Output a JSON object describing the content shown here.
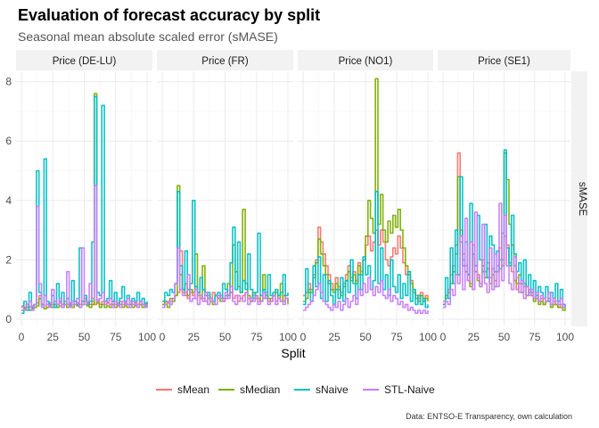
{
  "title": "Evaluation of forecast accuracy by split",
  "subtitle": "Seasonal mean absolute scaled error (sMASE)",
  "caption": "Data: ENTSO-E Transparency, own calculation",
  "colors": {
    "sMean": "#F8766D",
    "sMedian": "#7CAE00",
    "sNaive": "#00BFC4",
    "STL-Naive": "#C77CFF",
    "strip_bg": "#f2f2f2",
    "grid_major": "#ebebeb",
    "grid_minor": "#f5f5f5"
  },
  "chart_data": {
    "type": "line",
    "facets": [
      "Price (DE-LU)",
      "Price (FR)",
      "Price (NO1)",
      "Price (SE1)"
    ],
    "facet_strip_right": "sMASE",
    "xlabel": "Split",
    "ylabel": "",
    "xlim": [
      0,
      100
    ],
    "ylim": [
      0,
      8.2
    ],
    "xticks": [
      0,
      25,
      50,
      75,
      100
    ],
    "yticks": [
      0,
      2,
      4,
      6,
      8
    ],
    "legend": {
      "position": "bottom",
      "entries": [
        "sMean",
        "sMedian",
        "sNaive",
        "STL-Naive"
      ]
    },
    "x": [
      0,
      2,
      4,
      6,
      8,
      10,
      12,
      14,
      16,
      18,
      20,
      22,
      24,
      26,
      28,
      30,
      32,
      34,
      36,
      38,
      40,
      42,
      44,
      46,
      48,
      50,
      52,
      54,
      56,
      58,
      60,
      62,
      64,
      66,
      68,
      70,
      72,
      74,
      76,
      78,
      80,
      82,
      84,
      86,
      88,
      90,
      92,
      94,
      96,
      98,
      100
    ],
    "series": {
      "Price (DE-LU)": {
        "sMean": [
          0.45,
          0.4,
          0.5,
          0.42,
          0.45,
          0.5,
          0.55,
          0.8,
          0.5,
          0.45,
          0.5,
          0.55,
          0.5,
          0.6,
          0.5,
          0.55,
          0.5,
          0.6,
          0.5,
          0.55,
          0.5,
          0.6,
          0.55,
          0.5,
          0.6,
          0.7,
          0.55,
          0.5,
          0.6,
          0.5,
          0.65,
          0.5,
          0.6,
          0.5,
          0.55,
          0.5,
          0.6,
          0.5,
          0.55,
          0.6,
          0.5,
          0.55,
          0.5,
          0.6,
          0.5,
          0.55,
          0.5,
          0.6,
          0.5,
          0.55,
          0.5
        ],
        "sMedian": [
          0.3,
          0.35,
          0.4,
          0.3,
          0.35,
          0.4,
          0.45,
          0.7,
          0.4,
          0.35,
          0.4,
          0.45,
          0.4,
          0.5,
          0.4,
          0.45,
          0.4,
          0.5,
          0.4,
          0.45,
          0.4,
          0.5,
          0.45,
          0.4,
          0.5,
          0.6,
          0.45,
          0.4,
          0.5,
          7.6,
          0.55,
          0.4,
          0.5,
          0.4,
          0.45,
          0.4,
          0.5,
          0.4,
          0.45,
          0.5,
          0.4,
          0.45,
          0.4,
          0.5,
          0.4,
          0.45,
          0.4,
          0.5,
          0.4,
          0.45,
          0.4
        ],
        "sNaive": [
          0.2,
          0.6,
          0.3,
          0.9,
          0.4,
          0.5,
          5.0,
          0.9,
          0.5,
          5.4,
          0.6,
          0.5,
          0.8,
          0.4,
          1.2,
          0.6,
          0.9,
          0.5,
          0.7,
          0.5,
          1.3,
          0.6,
          0.5,
          2.4,
          0.6,
          0.8,
          0.5,
          0.6,
          2.6,
          7.5,
          0.9,
          0.8,
          7.2,
          0.6,
          0.7,
          1.3,
          0.6,
          0.9,
          0.5,
          0.7,
          1.1,
          0.6,
          0.8,
          0.5,
          0.7,
          0.6,
          0.9,
          0.6,
          0.7,
          0.5,
          0.6
        ],
        "STL-Naive": [
          0.4,
          0.3,
          0.5,
          0.6,
          0.3,
          0.5,
          3.8,
          1.2,
          0.4,
          0.8,
          0.5,
          0.4,
          1.0,
          0.6,
          0.5,
          0.7,
          0.4,
          0.5,
          1.6,
          0.4,
          0.6,
          0.5,
          0.7,
          0.4,
          2.4,
          0.5,
          0.6,
          1.2,
          0.7,
          4.5,
          0.6,
          0.7,
          0.9,
          0.5,
          0.6,
          0.7,
          0.4,
          0.6,
          0.5,
          0.4,
          0.6,
          0.5,
          0.7,
          0.4,
          0.6,
          0.5,
          0.4,
          0.6,
          0.5,
          0.4,
          0.5
        ]
      },
      "Price (FR)": {
        "sMean": [
          0.5,
          0.6,
          0.55,
          0.6,
          0.7,
          0.8,
          0.9,
          2.3,
          1.0,
          0.8,
          0.7,
          0.9,
          0.8,
          0.7,
          0.9,
          0.8,
          0.7,
          0.6,
          0.8,
          0.7,
          0.9,
          0.8,
          0.7,
          0.8,
          0.6,
          0.7,
          0.8,
          0.9,
          0.7,
          0.8,
          0.6,
          0.7,
          0.8,
          0.9,
          0.7,
          0.6,
          0.8,
          0.7,
          0.6,
          0.8,
          0.7,
          0.9,
          0.6,
          0.7,
          0.8,
          0.6,
          0.7,
          0.6,
          0.8,
          0.7,
          0.6
        ],
        "sMedian": [
          0.5,
          0.6,
          0.4,
          0.7,
          0.6,
          0.8,
          4.5,
          1.5,
          0.9,
          1.2,
          0.8,
          1.0,
          0.9,
          2.2,
          0.8,
          0.7,
          1.8,
          0.9,
          0.7,
          0.6,
          0.5,
          0.8,
          0.7,
          0.6,
          0.7,
          0.8,
          1.2,
          0.9,
          2.5,
          1.6,
          1.1,
          0.9,
          3.7,
          1.2,
          0.8,
          0.6,
          0.9,
          0.8,
          0.7,
          0.6,
          1.5,
          0.8,
          0.7,
          0.6,
          0.8,
          0.9,
          0.7,
          1.2,
          0.6,
          0.7,
          0.5
        ],
        "sNaive": [
          0.6,
          0.9,
          0.8,
          1.0,
          0.9,
          1.2,
          4.3,
          1.8,
          1.0,
          2.3,
          1.0,
          1.2,
          4.0,
          1.1,
          0.9,
          1.4,
          1.0,
          0.8,
          0.9,
          0.7,
          0.6,
          0.8,
          0.9,
          0.7,
          1.2,
          1.0,
          0.8,
          1.9,
          3.1,
          1.0,
          2.6,
          0.9,
          1.3,
          1.0,
          2.2,
          1.0,
          0.7,
          0.9,
          2.9,
          0.8,
          1.0,
          0.7,
          1.5,
          0.8,
          0.9,
          1.0,
          0.8,
          0.9,
          1.5,
          0.8,
          0.9
        ],
        "STL-Naive": [
          0.4,
          0.5,
          0.6,
          0.5,
          0.7,
          1.2,
          2.4,
          1.0,
          0.8,
          0.9,
          1.5,
          0.6,
          0.7,
          1.0,
          0.5,
          0.8,
          0.6,
          0.9,
          0.5,
          0.7,
          0.6,
          0.5,
          0.8,
          0.7,
          0.6,
          0.9,
          0.7,
          1.1,
          0.6,
          0.5,
          0.8,
          0.7,
          0.6,
          0.9,
          0.5,
          0.7,
          0.6,
          0.8,
          0.5,
          0.6,
          0.9,
          0.7,
          0.5,
          0.6,
          0.8,
          0.5,
          0.7,
          0.6,
          0.5,
          0.7,
          0.6
        ]
      },
      "Price (NO1)": {
        "sMean": [
          0.8,
          0.9,
          1.2,
          1.0,
          1.5,
          2.0,
          3.1,
          2.6,
          2.2,
          1.8,
          1.5,
          1.2,
          1.0,
          1.4,
          1.1,
          0.9,
          1.2,
          1.5,
          1.8,
          1.4,
          1.6,
          1.3,
          1.9,
          1.6,
          2.0,
          2.5,
          2.8,
          2.3,
          2.6,
          3.0,
          2.5,
          3.0,
          2.6,
          2.0,
          1.8,
          2.1,
          2.4,
          2.2,
          2.8,
          2.4,
          1.9,
          1.5,
          1.6,
          1.3,
          1.0,
          0.8,
          0.7,
          0.9,
          0.6,
          0.8,
          0.7
        ],
        "sMedian": [
          0.6,
          0.7,
          1.0,
          0.9,
          1.4,
          1.9,
          2.7,
          2.2,
          1.8,
          1.5,
          1.2,
          1.0,
          0.9,
          1.2,
          1.0,
          0.8,
          1.1,
          1.3,
          1.6,
          1.3,
          1.5,
          1.2,
          1.8,
          1.5,
          2.0,
          2.8,
          4.0,
          3.4,
          2.9,
          8.1,
          3.2,
          4.2,
          3.0,
          2.6,
          3.3,
          2.9,
          3.5,
          3.1,
          3.7,
          3.0,
          2.4,
          1.8,
          1.5,
          1.2,
          0.9,
          0.7,
          0.6,
          0.8,
          0.6,
          0.7,
          0.6
        ],
        "sNaive": [
          0.5,
          1.7,
          0.9,
          0.6,
          1.8,
          1.1,
          2.1,
          0.7,
          1.5,
          0.6,
          1.3,
          0.8,
          0.5,
          1.0,
          0.7,
          1.4,
          0.6,
          1.3,
          0.9,
          2.0,
          1.2,
          0.7,
          1.5,
          1.0,
          2.1,
          1.5,
          1.8,
          1.0,
          1.3,
          4.3,
          1.2,
          2.4,
          1.0,
          1.5,
          0.8,
          2.0,
          1.1,
          0.9,
          1.5,
          0.7,
          1.2,
          0.8,
          1.6,
          0.6,
          1.0,
          0.5,
          0.8,
          0.5,
          0.7,
          0.4,
          0.5
        ],
        "STL-Naive": [
          0.3,
          0.4,
          0.5,
          0.6,
          0.8,
          1.0,
          1.2,
          0.9,
          0.6,
          0.5,
          0.4,
          0.3,
          0.5,
          0.4,
          0.6,
          0.3,
          0.5,
          0.7,
          0.4,
          0.6,
          0.8,
          0.5,
          1.0,
          0.8,
          1.2,
          0.9,
          1.4,
          1.0,
          0.8,
          1.1,
          0.9,
          1.3,
          0.8,
          0.7,
          1.0,
          0.6,
          0.8,
          0.7,
          0.5,
          0.6,
          0.4,
          0.5,
          0.3,
          0.4,
          0.3,
          0.2,
          0.3,
          0.2,
          0.3,
          0.2,
          0.3
        ]
      },
      "Price (SE1)": {
        "sMean": [
          0.6,
          0.8,
          1.0,
          1.5,
          1.8,
          2.5,
          5.6,
          3.0,
          2.2,
          1.8,
          1.5,
          1.2,
          2.5,
          1.8,
          1.5,
          1.2,
          2.0,
          1.6,
          1.9,
          1.4,
          1.7,
          1.3,
          1.8,
          2.4,
          2.0,
          2.8,
          2.5,
          1.9,
          1.6,
          1.3,
          1.0,
          1.2,
          0.9,
          1.1,
          0.8,
          1.0,
          0.9,
          0.7,
          0.8,
          0.6,
          0.7,
          0.5,
          0.6,
          0.7,
          0.5,
          0.6,
          0.5,
          0.4,
          0.5,
          0.4,
          0.5
        ],
        "sMedian": [
          0.5,
          0.7,
          0.9,
          1.2,
          1.6,
          2.2,
          4.8,
          2.6,
          2.0,
          1.6,
          1.3,
          1.1,
          2.2,
          1.6,
          1.3,
          1.1,
          1.8,
          1.4,
          1.7,
          1.2,
          1.5,
          1.1,
          1.6,
          2.0,
          1.8,
          5.6,
          4.7,
          3.2,
          2.5,
          1.8,
          1.2,
          1.5,
          0.9,
          1.2,
          0.8,
          0.9,
          0.8,
          0.6,
          0.7,
          0.5,
          0.6,
          0.5,
          0.6,
          0.6,
          0.4,
          0.5,
          0.5,
          0.4,
          0.4,
          0.3,
          0.4
        ],
        "sNaive": [
          0.5,
          1.4,
          0.7,
          2.4,
          1.2,
          3.0,
          1.5,
          4.8,
          1.8,
          2.6,
          1.5,
          3.9,
          2.2,
          1.8,
          3.5,
          2.0,
          1.6,
          3.2,
          1.4,
          2.8,
          2.5,
          1.6,
          2.3,
          1.7,
          2.9,
          5.7,
          2.4,
          1.8,
          3.5,
          2.2,
          1.6,
          1.9,
          1.2,
          2.0,
          1.1,
          1.5,
          0.9,
          1.3,
          0.8,
          1.1,
          0.9,
          0.7,
          1.1,
          0.6,
          0.9,
          0.7,
          1.2,
          0.6,
          1.0,
          0.5,
          0.4
        ],
        "STL-Naive": [
          0.4,
          0.6,
          0.5,
          1.0,
          0.8,
          1.5,
          1.2,
          2.8,
          1.0,
          3.4,
          1.3,
          2.6,
          1.0,
          3.6,
          1.4,
          1.1,
          3.2,
          1.2,
          0.9,
          2.4,
          1.0,
          2.2,
          1.1,
          3.9,
          1.3,
          3.5,
          1.8,
          1.2,
          1.0,
          2.1,
          1.4,
          0.9,
          1.3,
          0.7,
          1.1,
          0.8,
          1.0,
          0.7,
          0.9,
          0.6,
          0.8,
          0.7,
          0.6,
          0.9,
          0.5,
          0.7,
          0.6,
          0.5,
          0.7,
          0.4,
          0.5
        ]
      }
    }
  }
}
